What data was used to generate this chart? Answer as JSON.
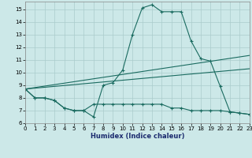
{
  "xlabel": "Humidex (Indice chaleur)",
  "bg_color": "#cce8e8",
  "line_color": "#1a6b60",
  "grid_color": "#aacccc",
  "xlim": [
    0,
    23
  ],
  "ylim": [
    6,
    15.6
  ],
  "yticks": [
    6,
    7,
    8,
    9,
    10,
    11,
    12,
    13,
    14,
    15
  ],
  "xticks": [
    0,
    1,
    2,
    3,
    4,
    5,
    6,
    7,
    8,
    9,
    10,
    11,
    12,
    13,
    14,
    15,
    16,
    17,
    18,
    19,
    20,
    21,
    22,
    23
  ],
  "curve1_x": [
    0,
    1,
    2,
    3,
    4,
    5,
    6,
    7,
    8,
    9,
    10,
    11,
    12,
    13,
    14,
    15,
    16,
    17,
    18,
    19,
    20,
    21,
    22,
    23
  ],
  "curve1_y": [
    8.7,
    8.0,
    8.0,
    7.8,
    7.2,
    7.0,
    7.0,
    6.5,
    9.0,
    9.2,
    10.2,
    13.0,
    15.1,
    15.35,
    14.8,
    14.8,
    14.8,
    12.5,
    11.1,
    10.9,
    8.9,
    6.9,
    6.8,
    6.7
  ],
  "curve2_x": [
    0,
    1,
    2,
    3,
    4,
    5,
    6,
    7,
    8,
    9,
    10,
    11,
    12,
    13,
    14,
    15,
    16,
    17,
    18,
    19,
    20,
    21,
    22,
    23
  ],
  "curve2_y": [
    8.7,
    8.0,
    8.0,
    7.8,
    7.2,
    7.0,
    7.0,
    7.5,
    7.5,
    7.5,
    7.5,
    7.5,
    7.5,
    7.5,
    7.5,
    7.2,
    7.2,
    7.0,
    7.0,
    7.0,
    7.0,
    6.9,
    6.8,
    6.7
  ],
  "line1_x": [
    0,
    23
  ],
  "line1_y": [
    8.7,
    10.3
  ],
  "line2_x": [
    0,
    23
  ],
  "line2_y": [
    8.7,
    11.35
  ]
}
